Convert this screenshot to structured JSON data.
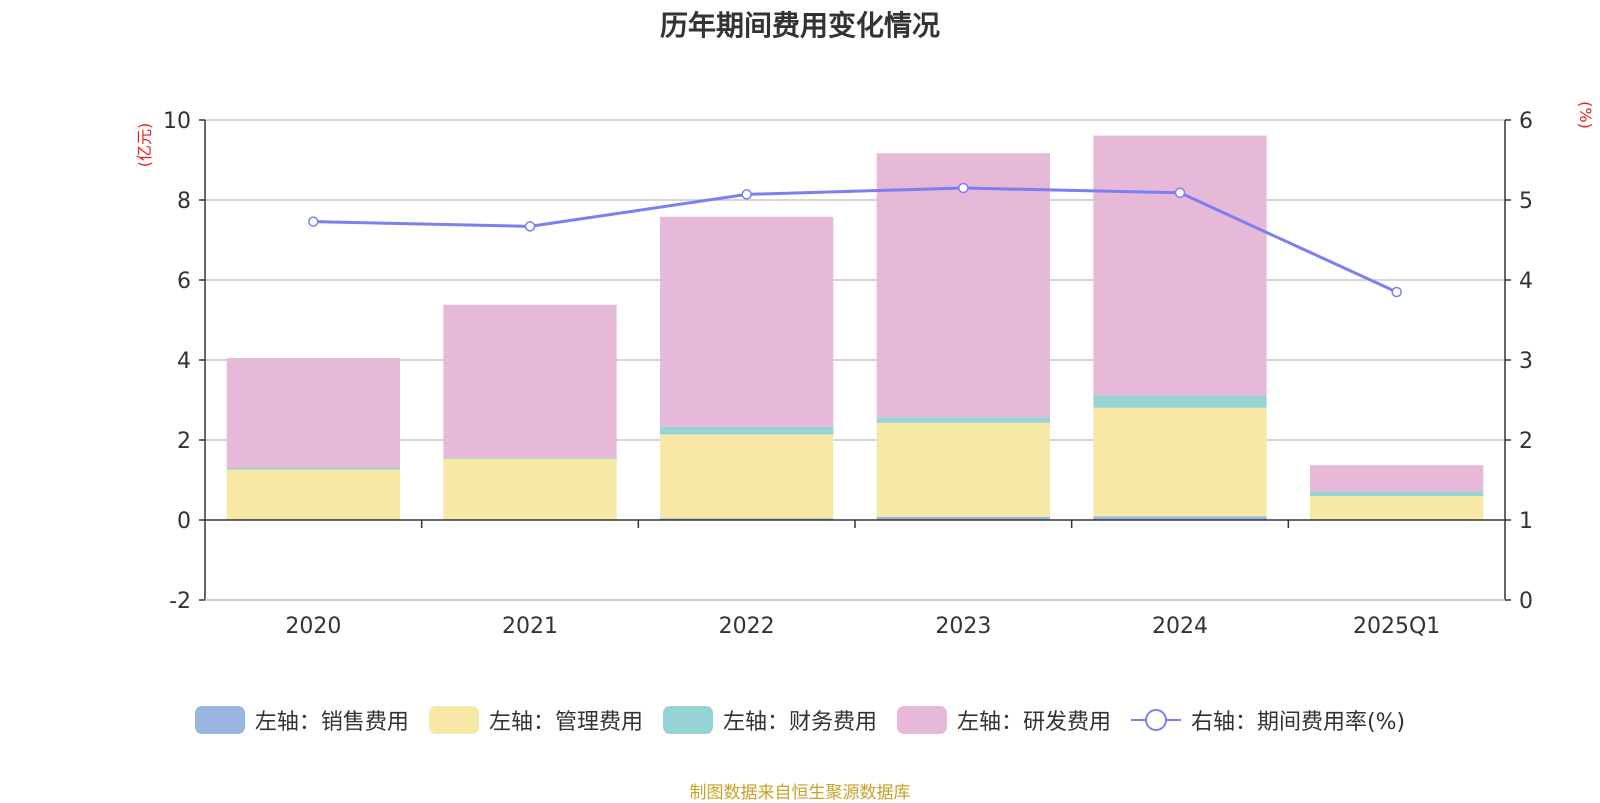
{
  "chart_data": {
    "type": "bar",
    "title": "历年期间费用变化情况",
    "categories": [
      "2020",
      "2021",
      "2022",
      "2023",
      "2024",
      "2025Q1"
    ],
    "left_axis": {
      "unit_label": "(亿元)",
      "ylim": [
        -2,
        10
      ],
      "ticks": [
        "-2",
        "0",
        "2",
        "4",
        "6",
        "8",
        "10"
      ]
    },
    "right_axis": {
      "unit_label": "(%)",
      "ylim": [
        0,
        6
      ],
      "ticks": [
        "0",
        "1",
        "2",
        "3",
        "4",
        "5",
        "6"
      ]
    },
    "series": [
      {
        "name": "左轴：销售费用",
        "type": "bar",
        "axis": "left",
        "color": "#9bb4e0",
        "values": [
          0.02,
          0.01,
          0.04,
          0.08,
          0.09,
          0
        ]
      },
      {
        "name": "左轴：管理费用",
        "type": "bar",
        "axis": "left",
        "color": "#f7e8a6",
        "values": [
          1.24,
          1.52,
          2.1,
          2.35,
          2.72,
          0.6
        ]
      },
      {
        "name": "左轴：财务费用",
        "type": "bar",
        "axis": "left",
        "color": "#96d3d3",
        "values": [
          0.04,
          0.02,
          0.19,
          0.14,
          0.3,
          0.1
        ]
      },
      {
        "name": "左轴：研发费用",
        "type": "bar",
        "axis": "left",
        "color": "#e7b9d9",
        "values": [
          2.75,
          3.83,
          5.25,
          6.6,
          6.5,
          0.67
        ]
      },
      {
        "name": "右轴：期间费用率(%)",
        "type": "line",
        "axis": "right",
        "color": "#7b7ff0",
        "values": [
          4.73,
          4.67,
          5.07,
          5.15,
          5.09,
          3.85
        ]
      }
    ],
    "grid": true,
    "legend": "bottom"
  },
  "source": "制图数据来自恒生聚源数据库"
}
